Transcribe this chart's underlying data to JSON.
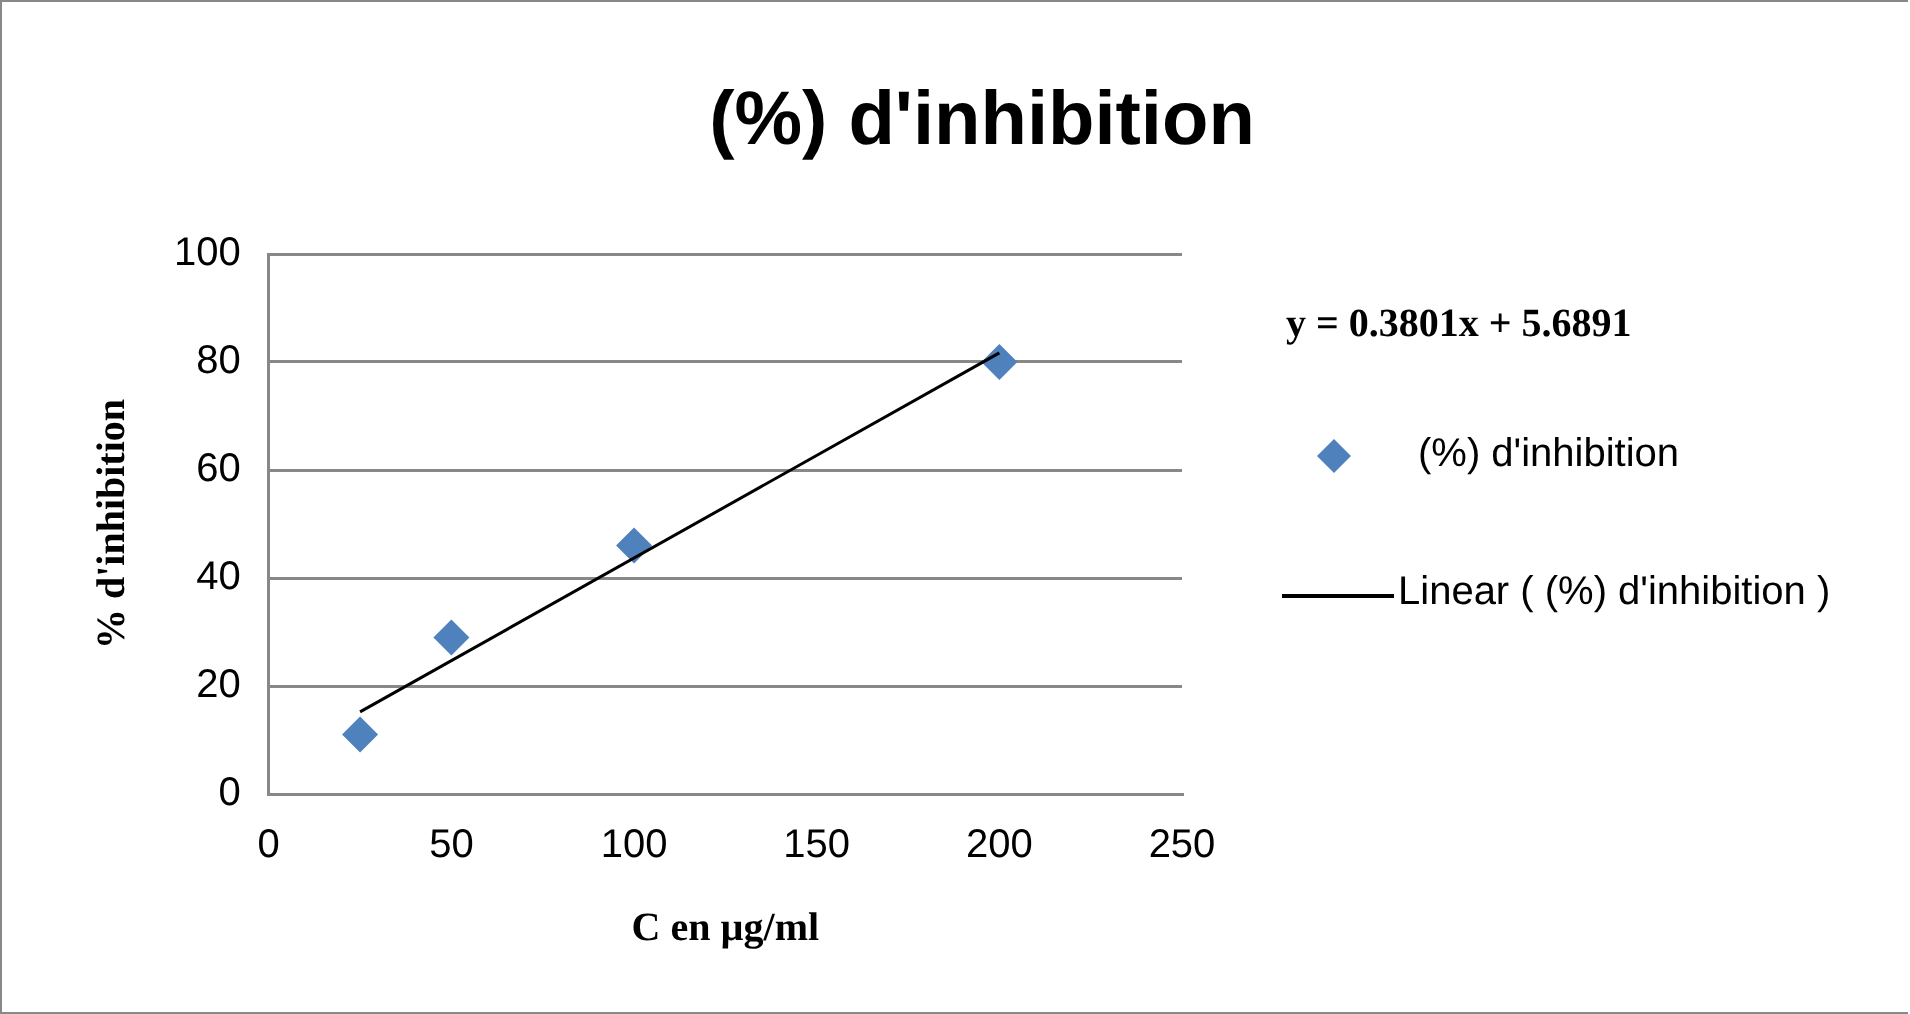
{
  "chart_data": {
    "type": "scatter",
    "title": "(%) d'inhibition",
    "xlabel": "C en µg/ml",
    "ylabel": "% d'inhibition",
    "annotations": [
      "y = 0.3801x + 5.6891"
    ],
    "series": [
      {
        "name": "(%) d'inhibition",
        "type": "scatter",
        "color": "#4f81bd",
        "marker": "diamond",
        "x": [
          25,
          50,
          100,
          200
        ],
        "values": [
          11,
          29,
          46,
          80
        ]
      },
      {
        "name": "Linear ( (%) d'inhibition )",
        "type": "line",
        "color": "#000000",
        "marker": "none",
        "line_style": "solid",
        "x": [
          25,
          200
        ],
        "values": [
          15.2,
          81.7
        ]
      }
    ],
    "xlim": [
      0,
      250
    ],
    "xticks": [
      0,
      50,
      100,
      150,
      200,
      250
    ],
    "ylim": [
      0,
      100
    ],
    "yticks": [
      0,
      20,
      40,
      60,
      80,
      100
    ],
    "grid": "y",
    "legend": "right"
  }
}
